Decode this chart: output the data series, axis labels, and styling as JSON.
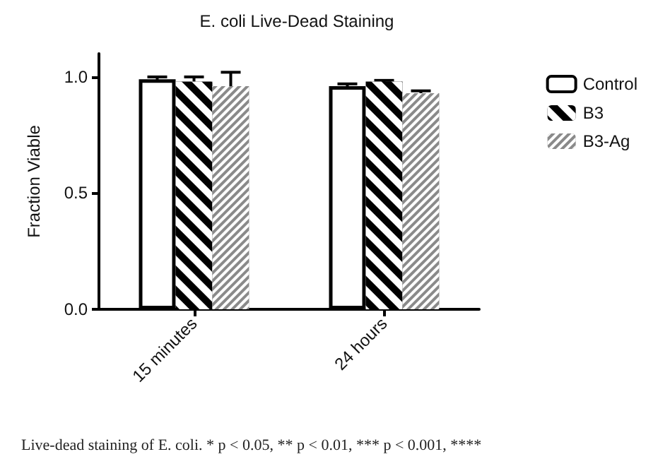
{
  "chart_data": {
    "type": "bar",
    "title": "E. coli Live-Dead Staining",
    "ylabel": "Fraction Viable",
    "categories": [
      "15 minutes",
      "24 hours"
    ],
    "series": [
      {
        "name": "Control",
        "color": "#ffffff",
        "values": [
          0.99,
          0.96
        ],
        "errors": [
          0.01,
          0.01
        ]
      },
      {
        "name": "B3",
        "color": "#000000",
        "values": [
          0.98,
          0.98
        ],
        "errors": [
          0.02,
          0.005
        ]
      },
      {
        "name": "B3-Ag",
        "color": "#8a8a8a",
        "values": [
          0.96,
          0.93
        ],
        "errors": [
          0.06,
          0.01
        ]
      }
    ],
    "ylim": [
      0,
      1.1
    ],
    "yticks": [
      {
        "value": 0,
        "label": "0.0"
      },
      {
        "value": 0.5,
        "label": "0.5"
      },
      {
        "value": 1,
        "label": "1.0"
      }
    ],
    "grid": false,
    "legend": "top right",
    "annotations": [
      "Live-dead staining of E. coli. * p < 0.05, ** p < 0.01, *** p < 0.001, ****"
    ]
  }
}
